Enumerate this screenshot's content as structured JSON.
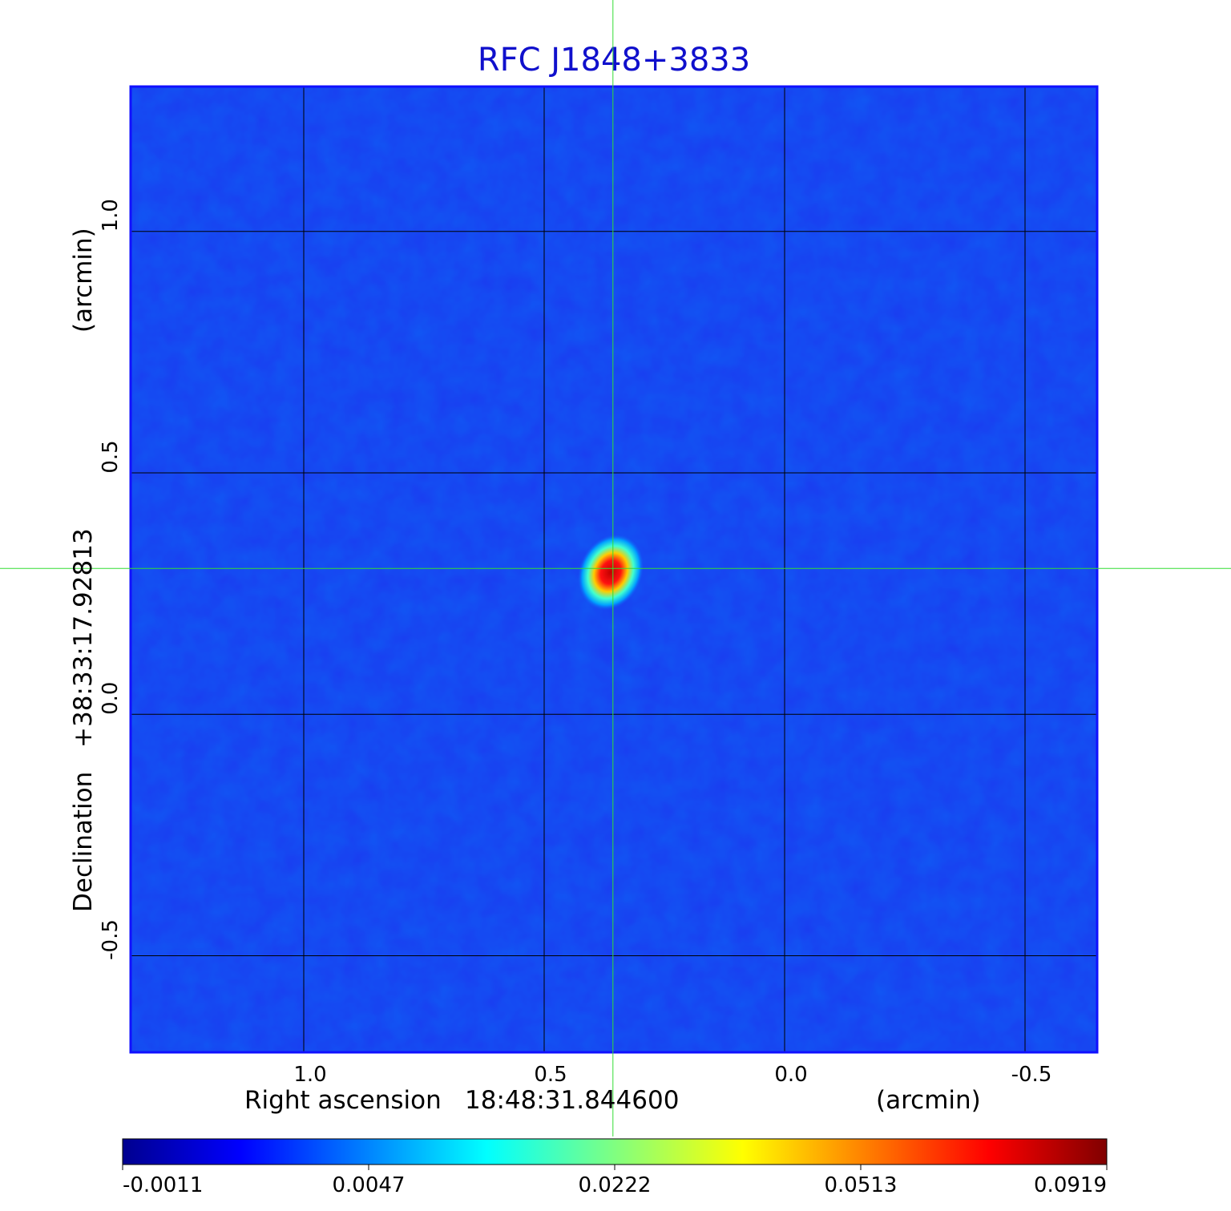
{
  "chart_data": {
    "type": "heatmap",
    "title": "RFC J1848+3833",
    "xlabel": {
      "name": "Right ascension",
      "value": "18:48:31.844600",
      "unit": "(arcmin)"
    },
    "ylabel": {
      "name": "Declination",
      "value": "+38:33:17.92813",
      "unit": "(arcmin)"
    },
    "xlim": [
      1.36,
      -0.65
    ],
    "ylim": [
      -0.7,
      1.3
    ],
    "x_ticks": [
      1.0,
      0.5,
      0.0,
      -0.5
    ],
    "x_tick_labels": [
      "1.0",
      "0.5",
      "0.0",
      "-0.5"
    ],
    "y_ticks": [
      1.0,
      0.5,
      0.0,
      -0.5
    ],
    "y_tick_labels": [
      "1.0",
      "0.5",
      "0.0",
      "-0.5"
    ],
    "grid": true,
    "crosshair": {
      "x": 0.357,
      "y": 0.302
    },
    "peak": {
      "x": 0.36,
      "y": 0.29,
      "value": 0.0919
    },
    "colorbar": {
      "ticks": [
        -0.0011,
        0.0047,
        0.0222,
        0.0513,
        0.0919
      ],
      "tick_labels": [
        "-0.0011",
        "0.0047",
        "0.0222",
        "0.0513",
        "0.0919"
      ],
      "colormap": "jet",
      "placement": "bottom"
    },
    "colors": {
      "title": "#1010cc",
      "background_field": "#1a3cf0",
      "grid": "#000000",
      "crosshair": "#33dd33",
      "frame": "#1010ff"
    }
  }
}
